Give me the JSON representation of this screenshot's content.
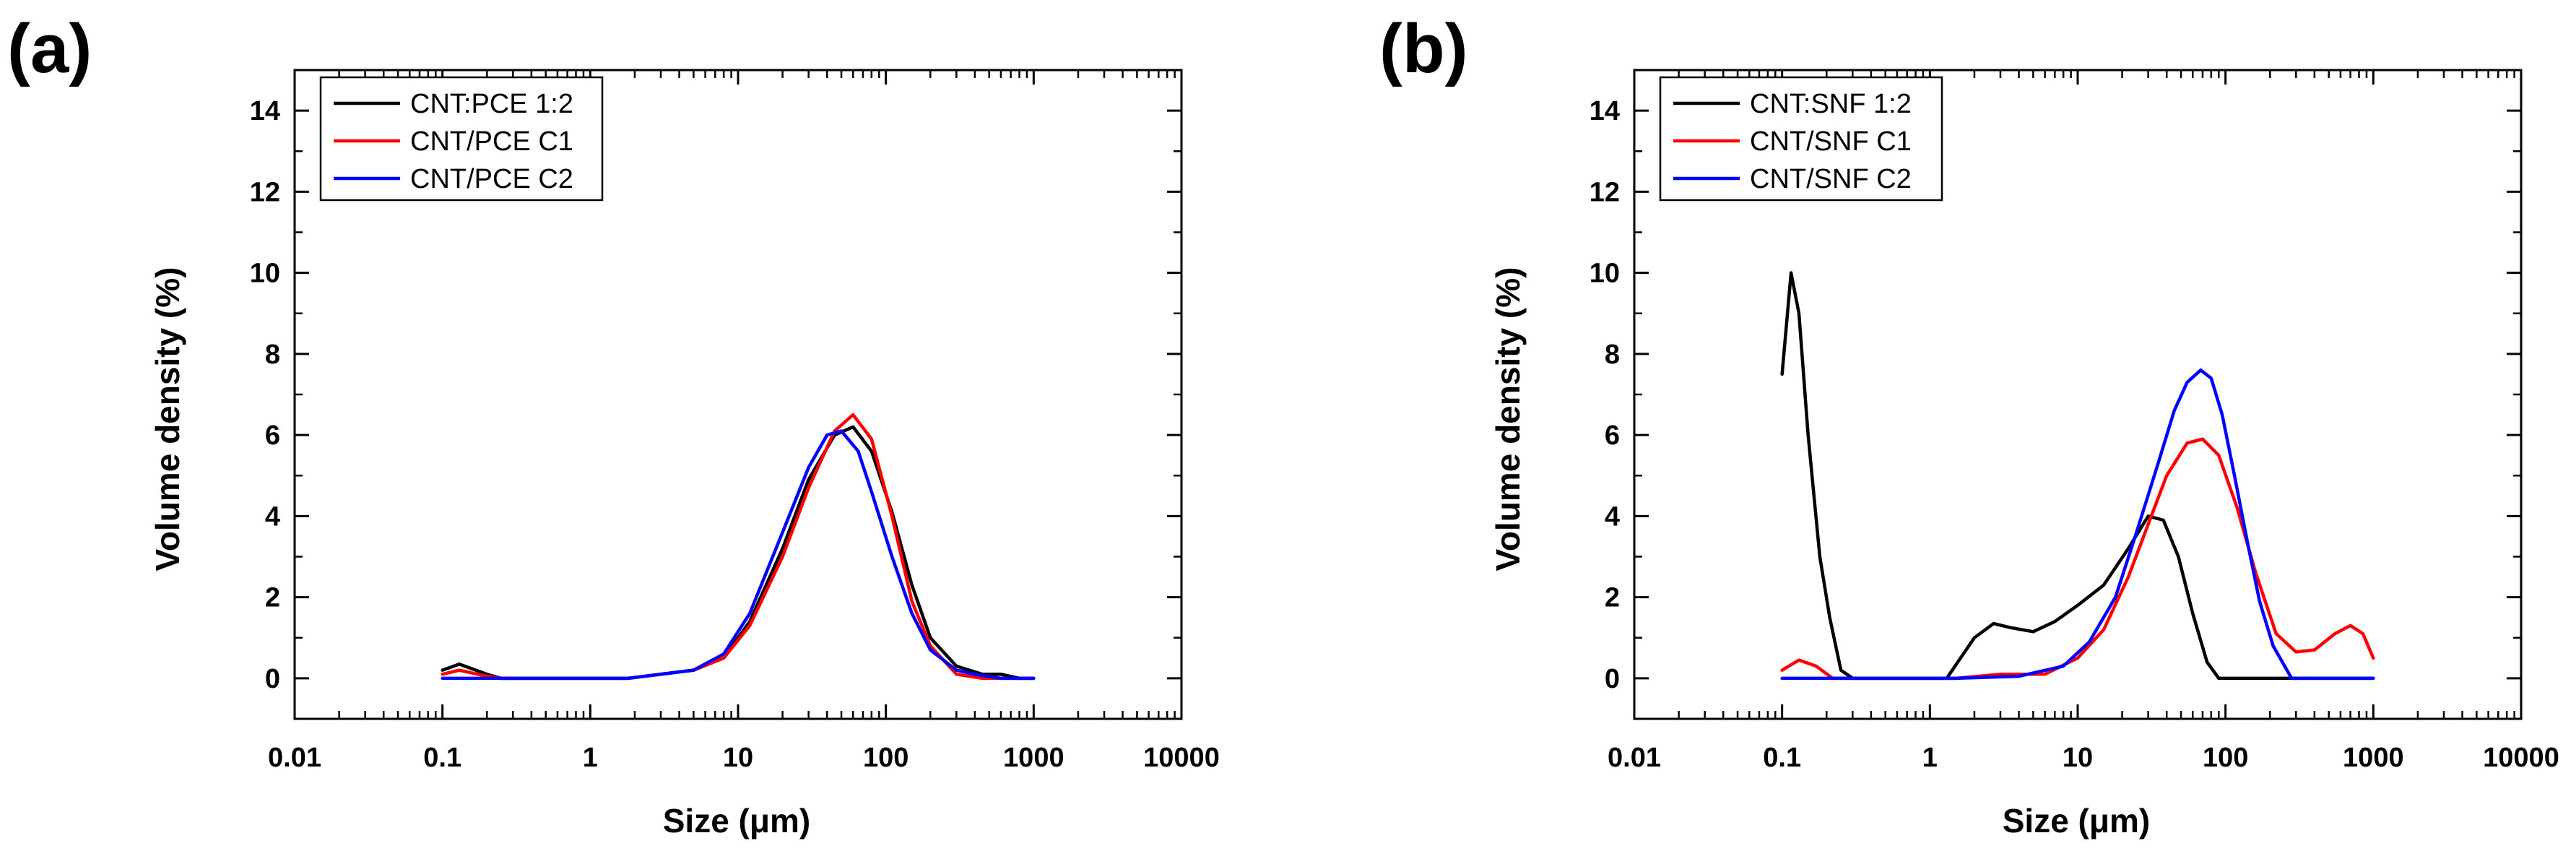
{
  "chart_data": [
    {
      "type": "line",
      "panel_label": "(a)",
      "xlabel": "Size (μm)",
      "ylabel": "Volume density (%)",
      "xscale": "log",
      "xlim": [
        0.01,
        10000
      ],
      "ylim": [
        -1,
        15
      ],
      "xticks": [
        "0.01",
        "0.1",
        "1",
        "10",
        "100",
        "1000",
        "10000"
      ],
      "yticks": [
        "0",
        "2",
        "4",
        "6",
        "8",
        "10",
        "12",
        "14"
      ],
      "legend_position": "top-left",
      "series": [
        {
          "name": "CNT:PCE 1:2",
          "color": "#000000",
          "x": [
            0.1,
            0.13,
            0.2,
            0.25,
            1.8,
            3,
            5,
            8,
            12,
            20,
            30,
            45,
            60,
            80,
            110,
            150,
            200,
            300,
            450,
            600,
            800,
            1000
          ],
          "y": [
            0.2,
            0.35,
            0.1,
            0,
            0,
            0.1,
            0.2,
            0.5,
            1.4,
            3.2,
            4.9,
            6.0,
            6.2,
            5.6,
            4.1,
            2.3,
            1.0,
            0.3,
            0.1,
            0.1,
            0,
            0
          ]
        },
        {
          "name": "CNT/PCE C1",
          "color": "#ff0000",
          "x": [
            0.1,
            0.13,
            0.2,
            0.25,
            1.8,
            3,
            5,
            8,
            12,
            20,
            30,
            45,
            60,
            80,
            110,
            150,
            200,
            300,
            450,
            600,
            1000
          ],
          "y": [
            0.1,
            0.2,
            0.05,
            0,
            0,
            0.1,
            0.2,
            0.5,
            1.3,
            3.0,
            4.7,
            6.1,
            6.5,
            5.9,
            4.0,
            1.9,
            0.8,
            0.1,
            0,
            0,
            0
          ]
        },
        {
          "name": "CNT/PCE C2",
          "color": "#0000ff",
          "x": [
            0.1,
            0.3,
            1.8,
            3,
            5,
            8,
            12,
            20,
            30,
            40,
            50,
            65,
            80,
            110,
            150,
            200,
            300,
            400,
            600,
            1000
          ],
          "y": [
            0,
            0,
            0,
            0.1,
            0.2,
            0.6,
            1.6,
            3.6,
            5.2,
            6.0,
            6.1,
            5.6,
            4.6,
            3.0,
            1.6,
            0.7,
            0.2,
            0.1,
            0,
            0
          ]
        }
      ]
    },
    {
      "type": "line",
      "panel_label": "(b)",
      "xlabel": "Size (μm)",
      "ylabel": "Volume density (%)",
      "xscale": "log",
      "xlim": [
        0.01,
        10000
      ],
      "ylim": [
        -1,
        15
      ],
      "xticks": [
        "0.01",
        "0.1",
        "1",
        "10",
        "100",
        "1000",
        "10000"
      ],
      "yticks": [
        "0",
        "2",
        "4",
        "6",
        "8",
        "10",
        "12",
        "14"
      ],
      "legend_position": "top-left",
      "series": [
        {
          "name": "CNT:SNF 1:2",
          "color": "#000000",
          "x": [
            0.1,
            0.115,
            0.13,
            0.15,
            0.18,
            0.21,
            0.25,
            0.3,
            1.3,
            2,
            2.7,
            3.5,
            5,
            7,
            10,
            15,
            22,
            30,
            38,
            48,
            60,
            75,
            90,
            1000
          ],
          "y": [
            7.5,
            10.0,
            9.0,
            6.0,
            3.0,
            1.5,
            0.2,
            0,
            0,
            1.0,
            1.35,
            1.25,
            1.15,
            1.4,
            1.8,
            2.3,
            3.2,
            4.0,
            3.9,
            3.0,
            1.6,
            0.4,
            0,
            0
          ]
        },
        {
          "name": "CNT/SNF C1",
          "color": "#ff0000",
          "x": [
            0.1,
            0.13,
            0.17,
            0.22,
            0.3,
            1.5,
            3,
            6,
            10,
            15,
            22,
            30,
            40,
            55,
            70,
            90,
            120,
            160,
            220,
            300,
            400,
            550,
            700,
            850,
            1000
          ],
          "y": [
            0.2,
            0.45,
            0.3,
            0,
            0,
            0,
            0.1,
            0.1,
            0.5,
            1.2,
            2.5,
            3.8,
            5.0,
            5.8,
            5.9,
            5.5,
            4.2,
            2.6,
            1.1,
            0.65,
            0.7,
            1.1,
            1.3,
            1.1,
            0.5
          ]
        },
        {
          "name": "CNT/SNF C2",
          "color": "#0000ff",
          "x": [
            0.1,
            1.5,
            4,
            8,
            12,
            18,
            25,
            35,
            45,
            55,
            68,
            80,
            95,
            115,
            140,
            170,
            210,
            280,
            1000
          ],
          "y": [
            0,
            0,
            0.05,
            0.3,
            0.9,
            2.0,
            3.6,
            5.3,
            6.6,
            7.3,
            7.6,
            7.4,
            6.5,
            5.0,
            3.4,
            1.9,
            0.8,
            0,
            0
          ]
        }
      ]
    }
  ]
}
